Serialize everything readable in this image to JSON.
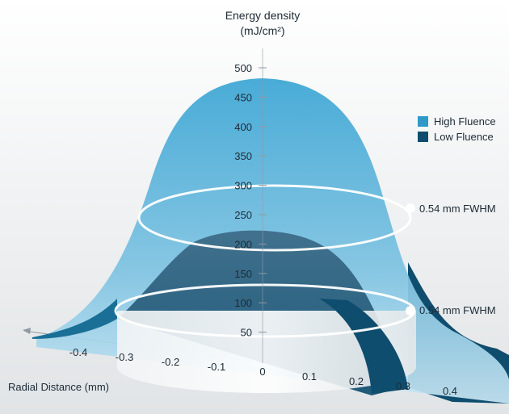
{
  "chart_data": {
    "type": "area",
    "title": "",
    "ylabel": "Energy density",
    "yunit": "(mJ/cm²)",
    "xlabel": "Radial Distance (mm)",
    "y_ticks": [
      "50",
      "100",
      "150",
      "200",
      "250",
      "300",
      "350",
      "400",
      "450",
      "500"
    ],
    "x_ticks": [
      "-0.4",
      "-0.3",
      "-0.2",
      "-0.1",
      "0",
      "0.1",
      "0.2",
      "0.3",
      "0.4"
    ],
    "ylim": [
      0,
      500
    ],
    "xlim": [
      -0.45,
      0.45
    ],
    "legend_position": "right",
    "series": [
      {
        "name": "High Fluence",
        "color": "#2f9ac8",
        "peak": 470,
        "fwhm_level": 235,
        "fwhm_label": "0.54 mm FWHM"
      },
      {
        "name": "Low Fluence",
        "color": "#0f4d6e",
        "peak": 200,
        "fwhm_level": 100,
        "fwhm_label": "0.54 mm FWHM"
      }
    ],
    "colors": {
      "background": "#ffffff",
      "axis": "#8f9aa3"
    }
  }
}
